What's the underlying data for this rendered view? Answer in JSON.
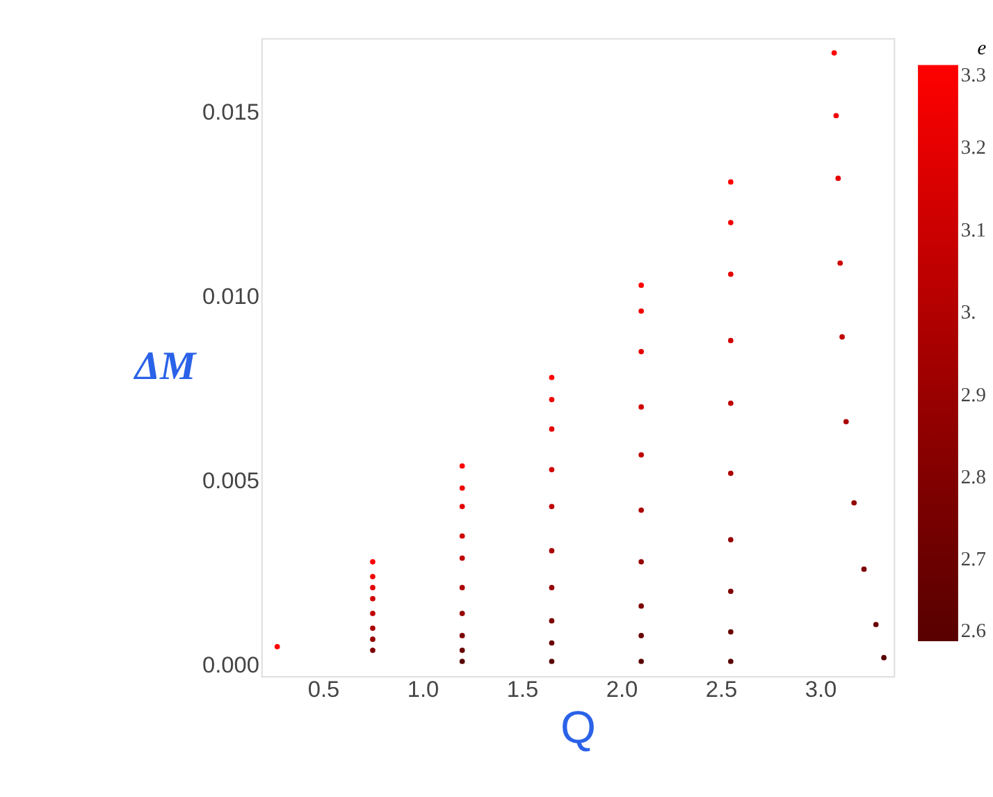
{
  "chart_data": {
    "type": "scatter",
    "xlabel": "Q",
    "ylabel": "ΔM",
    "clabel": "e",
    "xlim": [
      0.19,
      3.37
    ],
    "ylim": [
      -0.0003,
      0.017
    ],
    "xticks": [
      0.5,
      {
        "value": 1,
        "label": "1.0"
      },
      1.5,
      {
        "value": 2,
        "label": "2.0"
      },
      2.5,
      {
        "value": 3,
        "label": "3.0"
      }
    ],
    "yticks": [
      {
        "value": 0,
        "label": "0.000"
      },
      {
        "value": 0.005,
        "label": "0.005"
      },
      {
        "value": 0.01,
        "label": "0.010"
      },
      {
        "value": 0.015,
        "label": "0.015"
      }
    ],
    "clim": [
      2.6,
      3.3
    ],
    "cticks": [
      2.6,
      2.7,
      2.8,
      2.9,
      {
        "value": 3.0,
        "label": "3."
      },
      3.1,
      3.2,
      3.3
    ],
    "grid": false,
    "marker": "circle",
    "series": [
      {
        "x": [
          0.27,
          0.75,
          1.2,
          1.65,
          2.1,
          2.55,
          3.07
        ],
        "values": [
          0.0005,
          0.0028,
          0.0054,
          0.0078,
          0.0103,
          0.0131,
          0.0166
        ],
        "cvalues": [
          3.3,
          3.3,
          3.3,
          3.3,
          3.3,
          3.3,
          3.3
        ]
      },
      {
        "x": [
          0.75,
          1.2,
          1.65,
          2.1,
          2.55,
          3.08
        ],
        "values": [
          0.0024,
          0.0048,
          0.0072,
          0.0096,
          0.012,
          0.0149
        ],
        "cvalues": [
          3.25,
          3.25,
          3.25,
          3.25,
          3.25,
          3.25
        ]
      },
      {
        "x": [
          0.75,
          1.2,
          1.65,
          2.1,
          2.55,
          3.09
        ],
        "values": [
          0.0021,
          0.0043,
          0.0064,
          0.0085,
          0.0106,
          0.0132
        ],
        "cvalues": [
          3.2,
          3.2,
          3.2,
          3.2,
          3.2,
          3.2
        ]
      },
      {
        "x": [
          0.75,
          1.2,
          1.65,
          2.1,
          2.55,
          3.1
        ],
        "values": [
          0.0018,
          0.0035,
          0.0053,
          0.007,
          0.0088,
          0.0109
        ],
        "cvalues": [
          3.12,
          3.12,
          3.12,
          3.12,
          3.12,
          3.12
        ]
      },
      {
        "x": [
          0.75,
          1.2,
          1.65,
          2.1,
          2.55,
          3.11
        ],
        "values": [
          0.0014,
          0.0029,
          0.0043,
          0.0057,
          0.0071,
          0.0089
        ],
        "cvalues": [
          3.05,
          3.05,
          3.05,
          3.05,
          3.05,
          3.05
        ]
      },
      {
        "x": [
          0.75,
          1.2,
          1.65,
          2.1,
          2.55,
          3.13
        ],
        "values": [
          0.001,
          0.0021,
          0.0031,
          0.0042,
          0.0052,
          0.0066
        ],
        "cvalues": [
          2.97,
          2.97,
          2.97,
          2.97,
          2.97,
          2.97
        ]
      },
      {
        "x": [
          0.75,
          1.2,
          1.65,
          2.1,
          2.55,
          3.17
        ],
        "values": [
          0.0007,
          0.0014,
          0.0021,
          0.0028,
          0.0034,
          0.0044
        ],
        "cvalues": [
          2.88,
          2.88,
          2.88,
          2.88,
          2.88,
          2.88
        ]
      },
      {
        "x": [
          0.75,
          1.2,
          1.65,
          2.1,
          2.55,
          3.22
        ],
        "values": [
          0.0004,
          0.0008,
          0.0012,
          0.0016,
          0.002,
          0.0026
        ],
        "cvalues": [
          2.78,
          2.78,
          2.78,
          2.78,
          2.78,
          2.78
        ]
      },
      {
        "x": [
          1.2,
          1.65,
          2.1,
          2.55,
          3.28
        ],
        "values": [
          0.0004,
          0.0006,
          0.0008,
          0.0009,
          0.0011
        ],
        "cvalues": [
          2.68,
          2.68,
          2.68,
          2.68,
          2.68
        ]
      },
      {
        "x": [
          1.2,
          1.65,
          2.1,
          2.55,
          3.32
        ],
        "values": [
          0.0001,
          0.0001,
          0.0001,
          0.0001,
          0.0002
        ],
        "cvalues": [
          2.6,
          2.6,
          2.6,
          2.6,
          2.6
        ]
      }
    ]
  }
}
